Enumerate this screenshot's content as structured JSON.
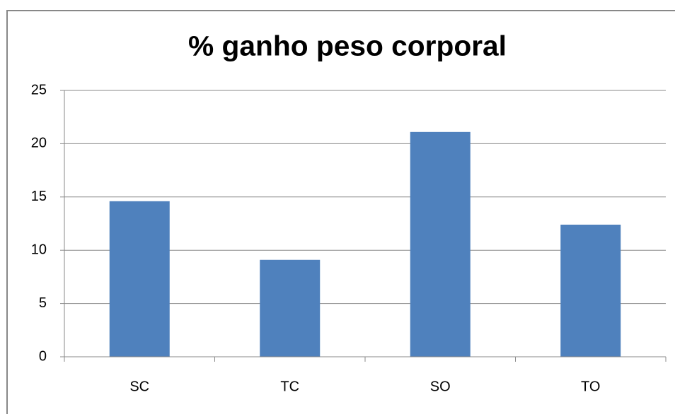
{
  "chart_data": {
    "type": "bar",
    "title": "% ganho peso corporal",
    "categories": [
      "SC",
      "TC",
      "SO",
      "TO"
    ],
    "values": [
      14.6,
      9.1,
      21.1,
      12.4
    ],
    "color": "#4f81bd",
    "ylim": [
      0,
      25
    ],
    "yticks": [
      0,
      5,
      10,
      15,
      20,
      25
    ],
    "grid": true
  }
}
